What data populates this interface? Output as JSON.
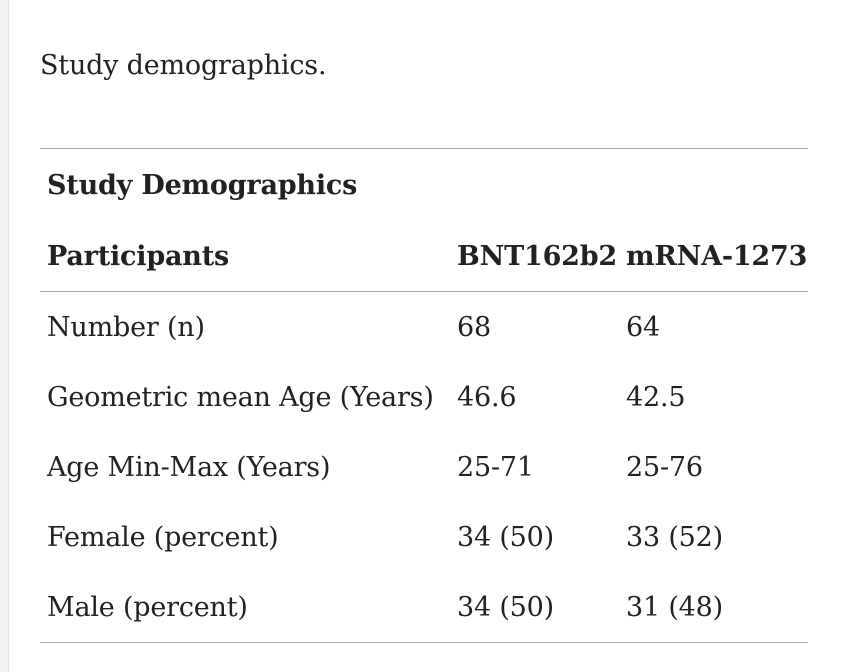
{
  "caption": "Study demographics.",
  "table": {
    "title": "Study Demographics",
    "headers": [
      "Participants",
      "BNT162b2",
      "mRNA-1273"
    ],
    "rows": [
      [
        "Number (n)",
        "68",
        "64"
      ],
      [
        "Geometric mean Age (Years)",
        "46.6",
        "42.5"
      ],
      [
        "Age Min-Max (Years)",
        "25-71",
        "25-76"
      ],
      [
        "Female (percent)",
        "34 (50)",
        "33 (52)"
      ],
      [
        "Male (percent)",
        "34 (50)",
        "31 (48)"
      ]
    ]
  }
}
